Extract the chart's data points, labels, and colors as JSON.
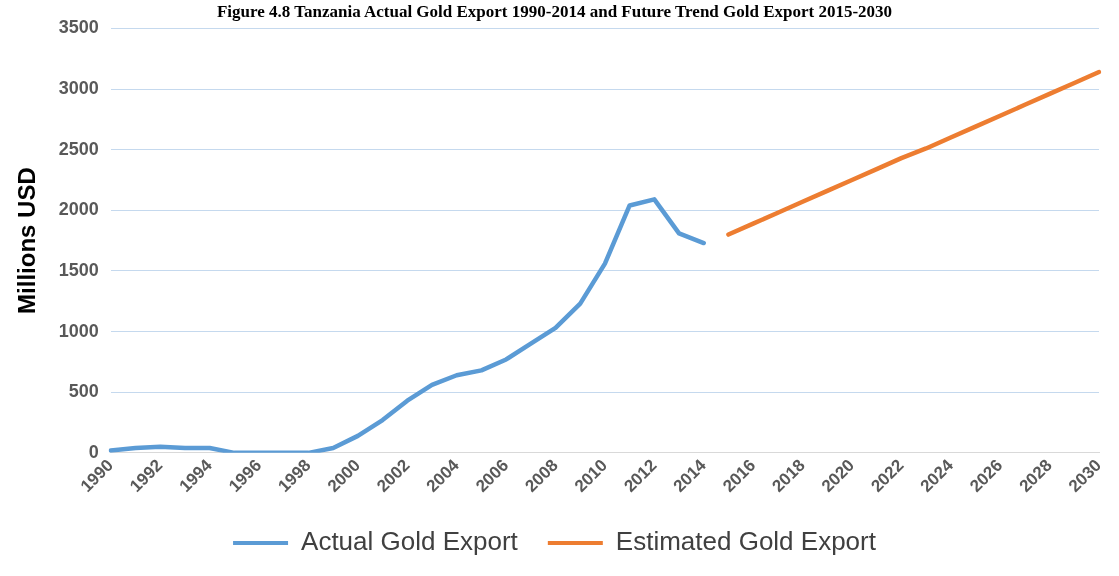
{
  "chart_data": {
    "type": "line",
    "title": "Figure 4.8 Tanzania Actual Gold Export 1990-2014 and Future Trend Gold Export 2015-2030",
    "ylabel": "Millions USD",
    "categories": [
      "1990",
      null,
      "1992",
      null,
      "1994",
      null,
      "1996",
      null,
      "1998",
      null,
      "2000",
      null,
      "2002",
      null,
      "2004",
      null,
      "2006",
      null,
      "2008",
      null,
      "2010",
      null,
      "2012",
      null,
      "2014",
      null,
      "2016",
      null,
      "2018",
      null,
      "2020",
      null,
      "2022",
      null,
      "2024",
      null,
      "2026",
      null,
      "2028",
      null,
      "2030"
    ],
    "series": [
      {
        "name": "Actual Gold Export",
        "color": "#5b9bd5",
        "values": [
          20,
          40,
          50,
          40,
          40,
          0,
          0,
          0,
          0,
          40,
          140,
          270,
          430,
          560,
          640,
          680,
          770,
          900,
          1030,
          1230,
          1560,
          2040,
          2090,
          1810,
          1730,
          null,
          null,
          null,
          null,
          null,
          null,
          null,
          null,
          null,
          null,
          null,
          null,
          null,
          null,
          null,
          null
        ]
      },
      {
        "name": "Estimated Gold Export",
        "color": "#ed7d31",
        "values": [
          null,
          null,
          null,
          null,
          null,
          null,
          null,
          null,
          null,
          null,
          null,
          null,
          null,
          null,
          null,
          null,
          null,
          null,
          null,
          null,
          null,
          null,
          null,
          null,
          null,
          1800,
          1890,
          1980,
          2070,
          2160,
          2250,
          2340,
          2430,
          2510,
          2600,
          2690,
          2780,
          2870,
          2960,
          3050,
          3140
        ]
      }
    ],
    "ylim": [
      0,
      3500
    ],
    "yticks": [
      0,
      500,
      1000,
      1500,
      2000,
      2500,
      3000,
      3500
    ],
    "grid": "y",
    "legend": "bottom",
    "marker": "none",
    "line_style": "solid"
  }
}
